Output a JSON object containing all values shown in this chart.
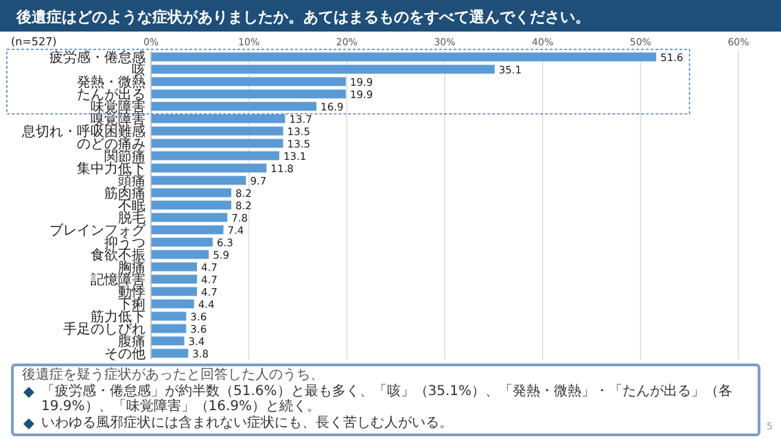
{
  "chart_data": {
    "type": "bar",
    "orientation": "horizontal",
    "title": "後遺症はどのような症状がありましたか。あてはまるものをすべて選んでください。",
    "categories": [
      "疲労感・倦怠感",
      "咳",
      "発熱・微熱",
      "たんが出る",
      "味覚障害",
      "嗅覚障害",
      "息切れ・呼吸困難感",
      "のどの痛み",
      "関節痛",
      "集中力低下",
      "頭痛",
      "筋肉痛",
      "不眠",
      "脱毛",
      "ブレインフォグ",
      "抑うつ",
      "食欲不振",
      "胸痛",
      "記憶障害",
      "動悸",
      "下痢",
      "筋力低下",
      "手足のしびれ",
      "腹痛",
      "その他"
    ],
    "values": [
      51.6,
      35.1,
      19.9,
      19.9,
      16.9,
      13.7,
      13.5,
      13.5,
      13.1,
      11.8,
      9.7,
      8.2,
      8.2,
      7.8,
      7.4,
      6.3,
      5.9,
      4.7,
      4.7,
      4.7,
      4.4,
      3.6,
      3.6,
      3.4,
      3.8
    ],
    "color": "#5b9bd5",
    "xlim": [
      0,
      60
    ],
    "xticks": [
      {
        "value": 0,
        "label": "0%"
      },
      {
        "value": 10,
        "label": "10%"
      },
      {
        "value": 20,
        "label": "20%"
      },
      {
        "value": 30,
        "label": "30%"
      },
      {
        "value": 40,
        "label": "40%"
      },
      {
        "value": 50,
        "label": "50%"
      },
      {
        "value": 60,
        "label": "60%"
      }
    ],
    "grid": "x",
    "data_labels": true,
    "annotations": [
      "(n=527)",
      "後遺症を疑う症状があったと回答した人のうち、",
      "「疲労感・倦怠感」が約半数（51.6%）と最も多く、「咳」（35.1%）、「発熱・微熱」・「たんが出る」（各19.9%）、「味覚障害」（16.9%）と続く。",
      "いわゆる風邪症状には含まれない症状にも、長く苦しむ人がいる。",
      "5"
    ]
  }
}
